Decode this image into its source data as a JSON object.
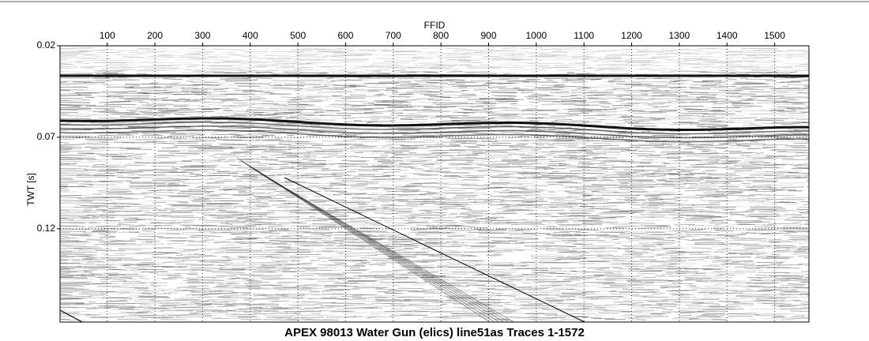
{
  "chart_data": {
    "type": "seismic",
    "title": "APEX 98013 Water Gun (elics) line51as Traces 1-1572",
    "x_label": "FFID",
    "y_label": "TWT [s]",
    "xlim": [
      1,
      1572
    ],
    "xticks": [
      100,
      200,
      300,
      400,
      500,
      600,
      700,
      800,
      900,
      1000,
      1100,
      1200,
      1300,
      1400,
      1500
    ],
    "ylim": [
      0.02,
      0.171
    ],
    "yticks": [
      0.02,
      0.07,
      0.12
    ],
    "y_inverted": true,
    "grid": true
  }
}
